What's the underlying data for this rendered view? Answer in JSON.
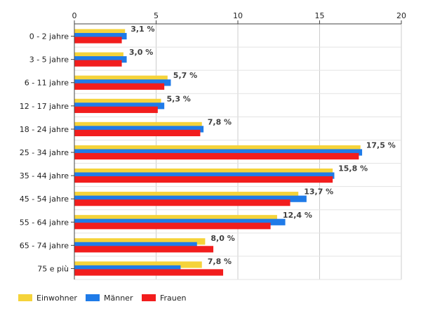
{
  "chart_data": {
    "type": "bar",
    "orientation": "horizontal",
    "categories": [
      "0 - 2 jahre",
      "3 - 5 jahre",
      "6 - 11 jahre",
      "12 - 17 jahre",
      "18 - 24 jahre",
      "25 - 34 jahre",
      "35 - 44 jahre",
      "45 - 54 jahre",
      "55 - 64 jahre",
      "65 - 74 jahre",
      "75 e più"
    ],
    "series": [
      {
        "name": "Einwohner",
        "color": "#f5d33a",
        "values": [
          3.1,
          3.0,
          5.7,
          5.3,
          7.8,
          17.5,
          15.8,
          13.7,
          12.4,
          8.0,
          7.8
        ]
      },
      {
        "name": "Männer",
        "color": "#1f7be8",
        "values": [
          3.2,
          3.2,
          5.9,
          5.5,
          7.9,
          17.6,
          15.9,
          14.2,
          12.9,
          7.5,
          6.5
        ]
      },
      {
        "name": "Frauen",
        "color": "#f21d1d",
        "values": [
          2.9,
          2.9,
          5.5,
          5.1,
          7.7,
          17.4,
          15.8,
          13.2,
          12.0,
          8.5,
          9.1
        ]
      }
    ],
    "data_labels": [
      "3,1 %",
      "3,0 %",
      "5,7 %",
      "5,3 %",
      "7,8 %",
      "17,5 %",
      "15,8 %",
      "13,7 %",
      "12,4 %",
      "8,0 %",
      "7,8 %"
    ],
    "xlim": [
      0,
      20
    ],
    "x_ticks": [
      "0",
      "5",
      "10",
      "15",
      "20"
    ],
    "x_tick_values": [
      0,
      5,
      10,
      15,
      20
    ],
    "grid": true,
    "legend_position": "bottom-left"
  }
}
